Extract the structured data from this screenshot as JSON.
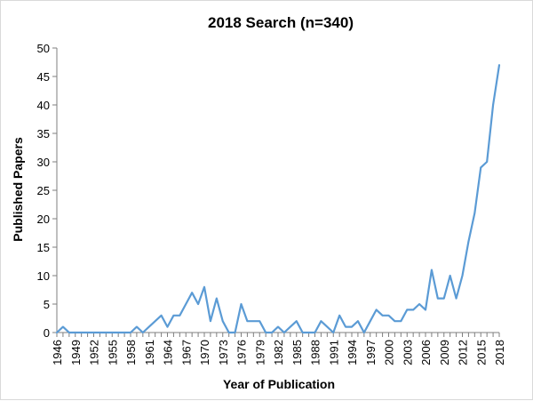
{
  "chart_data": {
    "type": "line",
    "title": "2018 Search (n=340)",
    "xlabel": "Year of Publication",
    "ylabel": "Published Papers",
    "ylim": [
      0,
      50
    ],
    "yticks": [
      0,
      5,
      10,
      15,
      20,
      25,
      30,
      35,
      40,
      45,
      50
    ],
    "xlim": [
      1946,
      2018
    ],
    "xticks": [
      1946,
      1949,
      1952,
      1955,
      1958,
      1961,
      1964,
      1967,
      1970,
      1973,
      1976,
      1979,
      1982,
      1985,
      1988,
      1991,
      1994,
      1997,
      2000,
      2003,
      2006,
      2009,
      2012,
      2015,
      2018
    ],
    "grid": false,
    "legend": "none",
    "line_color": "#5b9bd5",
    "series": [
      {
        "x": [
          1946,
          1947,
          1948,
          1949,
          1950,
          1951,
          1952,
          1953,
          1954,
          1955,
          1956,
          1957,
          1958,
          1959,
          1960,
          1961,
          1962,
          1963,
          1964,
          1965,
          1966,
          1967,
          1968,
          1969,
          1970,
          1971,
          1972,
          1973,
          1974,
          1975,
          1976,
          1977,
          1978,
          1979,
          1980,
          1981,
          1982,
          1983,
          1984,
          1985,
          1986,
          1987,
          1988,
          1989,
          1990,
          1991,
          1992,
          1993,
          1994,
          1995,
          1996,
          1997,
          1998,
          1999,
          2000,
          2001,
          2002,
          2003,
          2004,
          2005,
          2006,
          2007,
          2008,
          2009,
          2010,
          2011,
          2012,
          2013,
          2014,
          2015,
          2016,
          2017,
          2018
        ],
        "values": [
          0,
          1,
          0,
          0,
          0,
          0,
          0,
          0,
          0,
          0,
          0,
          0,
          0,
          1,
          0,
          1,
          2,
          3,
          1,
          3,
          3,
          5,
          7,
          5,
          8,
          2,
          6,
          2,
          0,
          0,
          5,
          2,
          2,
          2,
          0,
          0,
          1,
          0,
          1,
          2,
          0,
          0,
          0,
          2,
          1,
          0,
          3,
          1,
          1,
          2,
          0,
          2,
          4,
          3,
          3,
          2,
          2,
          4,
          4,
          5,
          4,
          11,
          6,
          6,
          10,
          6,
          10,
          16,
          21,
          29,
          30,
          40,
          47
        ]
      }
    ]
  }
}
